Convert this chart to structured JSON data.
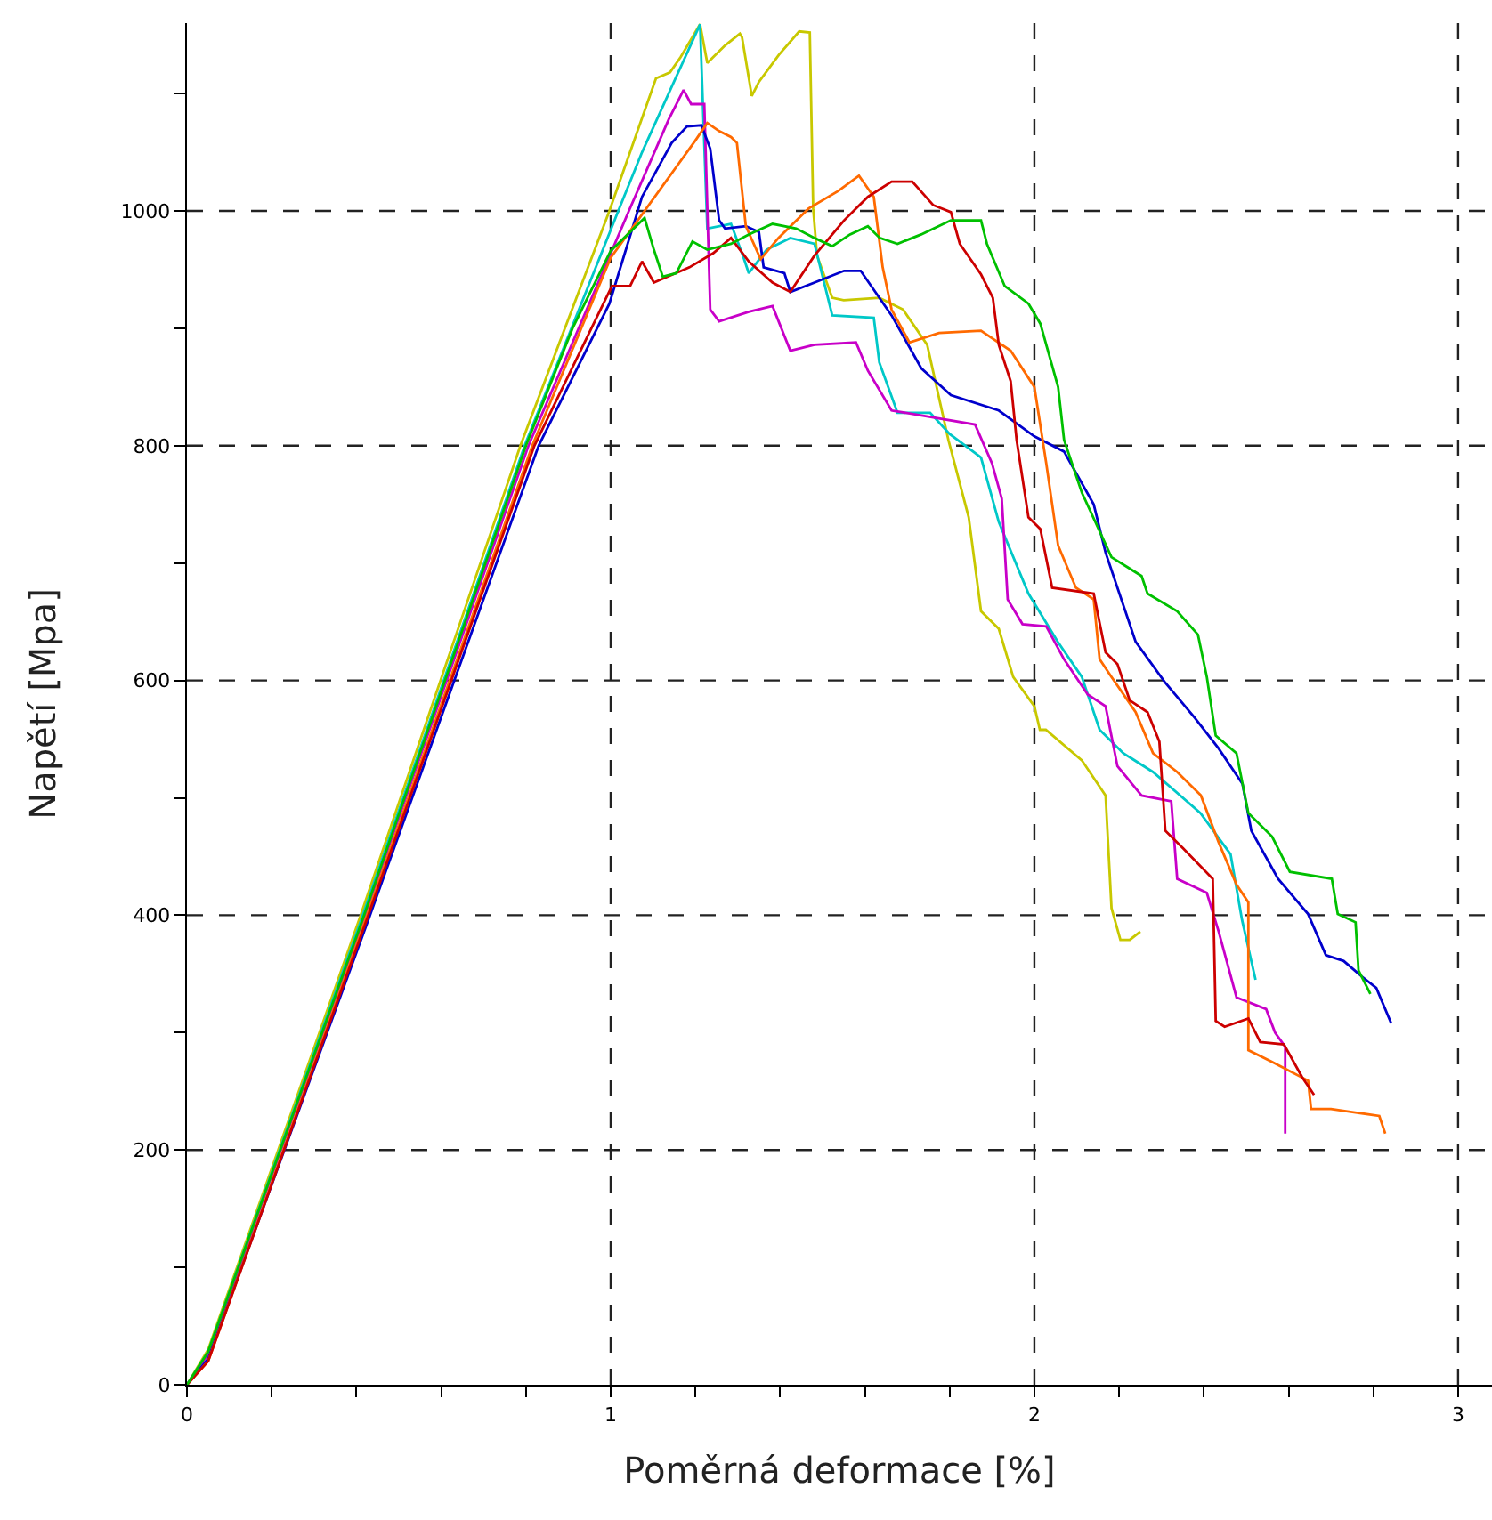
{
  "chart_data": {
    "type": "line",
    "xlabel": "Poměrná deformace [%]",
    "ylabel": "Napětí [Mpa]",
    "xlim": [
      0,
      3.08
    ],
    "ylim": [
      0,
      1160
    ],
    "xticks": [
      0,
      {
        "value": 0.2,
        "label": null
      },
      {
        "value": 0.4,
        "label": null
      },
      {
        "value": 0.6,
        "label": null
      },
      {
        "value": 0.8,
        "label": null
      },
      1,
      {
        "value": 1.2,
        "label": null
      },
      {
        "value": 1.4,
        "label": null
      },
      {
        "value": 1.6,
        "label": null
      },
      {
        "value": 1.8,
        "label": null
      },
      2,
      {
        "value": 2.2,
        "label": null
      },
      {
        "value": 2.4,
        "label": null
      },
      {
        "value": 2.6,
        "label": null
      },
      {
        "value": 2.8,
        "label": null
      },
      3
    ],
    "yticks": [
      0,
      {
        "value": 100,
        "label": null
      },
      200,
      {
        "value": 300,
        "label": null
      },
      400,
      {
        "value": 500,
        "label": null
      },
      600,
      {
        "value": 700,
        "label": null
      },
      800,
      {
        "value": 900,
        "label": null
      },
      1000,
      {
        "value": 1100,
        "label": null
      }
    ],
    "grid": true,
    "marker": "none",
    "line_style": "solid",
    "series": [
      {
        "color": "#c8c800",
        "x": [
          0,
          0.05,
          0.41,
          0.787,
          0.997,
          1.107,
          1.14,
          1.165,
          1.211,
          1.228,
          1.27,
          1.305,
          1.31,
          1.333,
          1.35,
          1.397,
          1.445,
          1.47,
          1.478,
          1.487,
          1.523,
          1.55,
          1.634,
          1.69,
          1.747,
          1.797,
          1.845,
          1.874,
          1.916,
          1.95,
          2.0,
          2.013,
          2.027,
          2.112,
          2.168,
          2.182,
          2.203,
          2.225,
          2.25
        ],
        "values": [
          0,
          30,
          400,
          800,
          1000,
          1113,
          1118,
          1131,
          1159,
          1126,
          1141,
          1151,
          1148,
          1098,
          1110,
          1133,
          1153,
          1152,
          1002,
          962,
          926,
          924,
          926,
          916,
          886,
          805,
          739,
          659,
          644,
          603,
          578,
          558,
          558,
          532,
          502,
          406,
          379,
          379,
          386
        ]
      },
      {
        "color": "#00c8c8",
        "x": [
          0,
          0.05,
          0.415,
          0.797,
          1.018,
          1.074,
          1.211,
          1.228,
          1.284,
          1.312,
          1.326,
          1.368,
          1.424,
          1.481,
          1.523,
          1.621,
          1.634,
          1.677,
          1.754,
          1.8,
          1.874,
          1.916,
          1.986,
          2.055,
          2.112,
          2.154,
          2.21,
          2.28,
          2.392,
          2.463,
          2.49,
          2.522
        ],
        "values": [
          0,
          28,
          400,
          800,
          1000,
          1050,
          1159,
          985,
          989,
          962,
          947,
          967,
          977,
          972,
          911,
          909,
          871,
          828,
          828,
          810,
          790,
          735,
          674,
          633,
          603,
          558,
          538,
          522,
          487,
          452,
          396,
          345
        ]
      },
      {
        "color": "#c800c8",
        "x": [
          0,
          0.05,
          0.42,
          0.806,
          1.043,
          1.137,
          1.172,
          1.19,
          1.221,
          1.235,
          1.256,
          1.326,
          1.382,
          1.424,
          1.481,
          1.579,
          1.607,
          1.663,
          1.86,
          1.9,
          1.923,
          1.937,
          1.972,
          2.028,
          2.07,
          2.126,
          2.168,
          2.196,
          2.253,
          2.323,
          2.337,
          2.407,
          2.435,
          2.477,
          2.547,
          2.568,
          2.592,
          2.592
        ],
        "values": [
          0,
          26,
          400,
          800,
          1000,
          1078,
          1103,
          1091,
          1091,
          916,
          906,
          914,
          919,
          881,
          886,
          888,
          864,
          830,
          818,
          785,
          755,
          669,
          648,
          646,
          618,
          588,
          578,
          527,
          502,
          497,
          431,
          419,
          386,
          330,
          320,
          300,
          288,
          214
        ]
      },
      {
        "color": "#0000cc",
        "x": [
          0,
          0.05,
          0.432,
          0.83,
          0.997,
          1.074,
          1.144,
          1.18,
          1.214,
          1.235,
          1.256,
          1.27,
          1.319,
          1.35,
          1.361,
          1.41,
          1.424,
          1.481,
          1.551,
          1.59,
          1.663,
          1.733,
          1.803,
          1.916,
          2.0,
          2.07,
          2.14,
          2.168,
          2.239,
          2.309,
          2.379,
          2.435,
          2.491,
          2.512,
          2.575,
          2.646,
          2.688,
          2.73,
          2.772,
          2.807,
          2.842
        ],
        "values": [
          0,
          22,
          400,
          800,
          921,
          1012,
          1058,
          1072,
          1073,
          1053,
          992,
          985,
          987,
          982,
          952,
          947,
          931,
          939,
          949,
          949,
          911,
          866,
          843,
          830,
          808,
          795,
          750,
          709,
          633,
          598,
          568,
          542,
          512,
          472,
          431,
          401,
          366,
          361,
          348,
          338,
          308
        ]
      },
      {
        "color": "#ff6a00",
        "x": [
          0,
          0.05,
          0.425,
          0.815,
          1.0,
          1.2,
          1.228,
          1.256,
          1.284,
          1.298,
          1.319,
          1.354,
          1.396,
          1.467,
          1.537,
          1.586,
          1.621,
          1.642,
          1.663,
          1.705,
          1.775,
          1.874,
          1.944,
          2.0,
          2.028,
          2.056,
          2.098,
          2.14,
          2.154,
          2.182,
          2.239,
          2.28,
          2.337,
          2.393,
          2.435,
          2.477,
          2.505,
          2.505,
          2.561,
          2.646,
          2.653,
          2.7,
          2.814,
          2.828
        ],
        "values": [
          0,
          20,
          400,
          800,
          960,
          1060,
          1075,
          1068,
          1063,
          1058,
          987,
          959,
          977,
          1002,
          1017,
          1030,
          1012,
          952,
          916,
          888,
          896,
          898,
          881,
          850,
          785,
          715,
          679,
          669,
          618,
          603,
          573,
          538,
          522,
          502,
          462,
          426,
          411,
          285,
          275,
          259,
          235,
          235,
          229,
          214
        ]
      },
      {
        "color": "#cc0000",
        "x": [
          0,
          0.05,
          0.428,
          0.82,
          1.003,
          1.046,
          1.074,
          1.102,
          1.186,
          1.242,
          1.284,
          1.326,
          1.382,
          1.424,
          1.481,
          1.551,
          1.607,
          1.663,
          1.712,
          1.761,
          1.803,
          1.824,
          1.874,
          1.902,
          1.916,
          1.944,
          1.958,
          1.986,
          2.014,
          2.042,
          2.14,
          2.168,
          2.196,
          2.225,
          2.267,
          2.295,
          2.309,
          2.351,
          2.421,
          2.428,
          2.449,
          2.505,
          2.533,
          2.589,
          2.632,
          2.66
        ],
        "values": [
          0,
          20,
          400,
          800,
          936,
          936,
          957,
          939,
          952,
          964,
          977,
          957,
          939,
          931,
          962,
          992,
          1012,
          1025,
          1025,
          1005,
          999,
          972,
          946,
          926,
          886,
          855,
          805,
          739,
          729,
          679,
          674,
          624,
          614,
          583,
          573,
          548,
          472,
          457,
          431,
          310,
          305,
          312,
          292,
          290,
          262,
          247
        ]
      },
      {
        "color": "#00c000",
        "x": [
          0,
          0.05,
          0.418,
          0.8,
          0.91,
          1.0,
          1.08,
          1.102,
          1.123,
          1.155,
          1.193,
          1.228,
          1.284,
          1.326,
          1.382,
          1.438,
          1.481,
          1.523,
          1.565,
          1.607,
          1.635,
          1.677,
          1.733,
          1.803,
          1.874,
          1.888,
          1.93,
          1.986,
          2.014,
          2.056,
          2.07,
          2.112,
          2.182,
          2.253,
          2.267,
          2.337,
          2.386,
          2.407,
          2.428,
          2.477,
          2.505,
          2.561,
          2.603,
          2.702,
          2.716,
          2.758,
          2.765,
          2.793
        ],
        "values": [
          0,
          28,
          400,
          800,
          900,
          966,
          994,
          967,
          944,
          947,
          974,
          967,
          972,
          980,
          989,
          985,
          977,
          970,
          980,
          987,
          977,
          972,
          980,
          992,
          992,
          972,
          936,
          921,
          904,
          850,
          805,
          760,
          705,
          689,
          674,
          659,
          639,
          603,
          553,
          538,
          487,
          467,
          437,
          431,
          401,
          394,
          353,
          333
        ]
      }
    ]
  }
}
